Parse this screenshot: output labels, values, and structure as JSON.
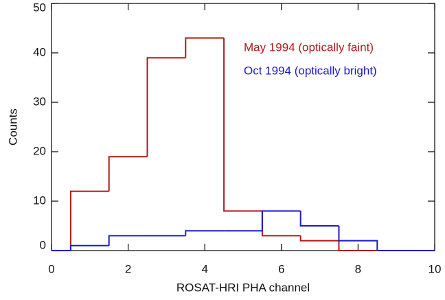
{
  "chart_data": {
    "type": "histogram",
    "xlabel": "ROSAT-HRI PHA channel",
    "ylabel": "Counts",
    "bins": [
      0.5,
      1.5,
      2.5,
      3.5,
      4.5,
      5.5,
      6.5,
      7.5,
      8.5
    ],
    "series": [
      {
        "name": "May 1994 (optically faint)",
        "color": "#b01818",
        "values": [
          12,
          19,
          39,
          43,
          8,
          3,
          2,
          0
        ]
      },
      {
        "name": "Oct 1994 (optically bright)",
        "color": "#1a1acc",
        "values": [
          1,
          3,
          3,
          4,
          4,
          8,
          5,
          2
        ]
      }
    ],
    "xlim": [
      0,
      10
    ],
    "xticks": [
      0,
      2,
      4,
      6,
      8,
      10
    ],
    "ylim": [
      0,
      50
    ],
    "yticks": [
      0,
      10,
      20,
      30,
      40,
      50
    ],
    "grid": false
  }
}
